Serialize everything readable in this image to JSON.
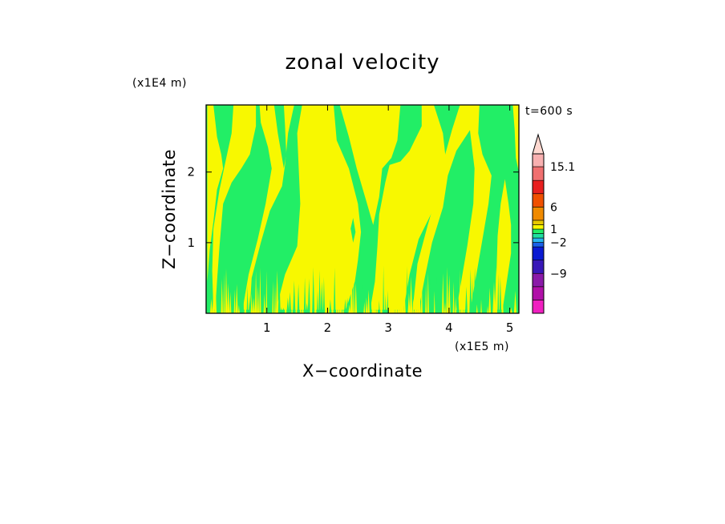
{
  "chart_data": {
    "type": "heatmap",
    "title": "zonal velocity",
    "xlabel": "X−coordinate",
    "ylabel": "Z−coordinate",
    "x_scale_label": "(x1E5 m)",
    "y_scale_label": "(x1E4 m)",
    "time_label": "t=600 s",
    "xlim": [
      0,
      5.15
    ],
    "ylim": [
      0,
      2.95
    ],
    "x_ticks": [
      1,
      2,
      3,
      4,
      5
    ],
    "y_ticks": [
      1,
      2
    ],
    "x_tick_labels": [
      "1",
      "2",
      "3",
      "4",
      "5"
    ],
    "y_tick_labels": [
      "1",
      "2"
    ],
    "colorbar": {
      "levels": [
        {
          "from": -18,
          "to": -15,
          "color": "#f020c0"
        },
        {
          "from": -15,
          "to": -12,
          "color": "#b010a8"
        },
        {
          "from": -12,
          "to": -9,
          "color": "#8a1aa8"
        },
        {
          "from": -9,
          "to": -6,
          "color": "#3818b8"
        },
        {
          "from": -6,
          "to": -3,
          "color": "#0a1ad2"
        },
        {
          "from": -3,
          "to": -2,
          "color": "#1a60e8"
        },
        {
          "from": -2,
          "to": -1,
          "color": "#27b4f0"
        },
        {
          "from": -1,
          "to": 0,
          "color": "#1fe0a0"
        },
        {
          "from": 0,
          "to": 1,
          "color": "#22ee66"
        },
        {
          "from": 1,
          "to": 2,
          "color": "#f8f800"
        },
        {
          "from": 2,
          "to": 3,
          "color": "#e8c800"
        },
        {
          "from": 3,
          "to": 6,
          "color": "#f08a00"
        },
        {
          "from": 6,
          "to": 9,
          "color": "#f05000"
        },
        {
          "from": 9,
          "to": 12,
          "color": "#e82020"
        },
        {
          "from": 12,
          "to": 15.1,
          "color": "#f07070"
        },
        {
          "from": 15.1,
          "to": 18,
          "color": "#f8b0b0"
        }
      ],
      "labels": [
        "15.1",
        "6",
        "1",
        "−2",
        "−9"
      ],
      "label_values": [
        15.1,
        6,
        1,
        -2,
        -9
      ],
      "overflow_color": "#ffd8d0"
    },
    "field_colors": {
      "background": "#22ee66",
      "positive": "#f8f800"
    },
    "positive_regions": [
      [
        [
          0.15,
          0.05
        ],
        [
          0.18,
          0.45
        ],
        [
          0.22,
          0.95
        ],
        [
          0.28,
          1.55
        ],
        [
          0.42,
          1.85
        ],
        [
          0.58,
          2.05
        ],
        [
          0.72,
          2.25
        ],
        [
          0.82,
          2.65
        ],
        [
          0.82,
          2.95
        ],
        [
          0.45,
          2.95
        ],
        [
          0.42,
          2.55
        ],
        [
          0.32,
          2.15
        ],
        [
          0.22,
          1.75
        ],
        [
          0.12,
          1.2
        ],
        [
          0.1,
          0.6
        ],
        [
          0.12,
          0.05
        ]
      ],
      [
        [
          0.02,
          0.45
        ],
        [
          0.06,
          0.9
        ],
        [
          0.12,
          1.3
        ],
        [
          0.18,
          1.75
        ],
        [
          0.28,
          2.05
        ],
        [
          0.25,
          2.25
        ],
        [
          0.18,
          2.5
        ],
        [
          0.12,
          2.95
        ],
        [
          0.02,
          2.95
        ]
      ],
      [
        [
          0.72,
          0.05
        ],
        [
          0.75,
          0.5
        ],
        [
          0.9,
          1.0
        ],
        [
          1.05,
          1.45
        ],
        [
          1.25,
          1.8
        ],
        [
          1.3,
          2.1
        ],
        [
          1.35,
          2.55
        ],
        [
          1.45,
          2.95
        ],
        [
          0.88,
          2.95
        ],
        [
          0.9,
          2.7
        ],
        [
          1.02,
          2.35
        ],
        [
          1.08,
          2.05
        ],
        [
          0.98,
          1.55
        ],
        [
          0.85,
          1.05
        ],
        [
          0.7,
          0.55
        ],
        [
          0.6,
          0.05
        ]
      ],
      [
        [
          1.15,
          0.05
        ],
        [
          1.3,
          0.55
        ],
        [
          1.5,
          0.95
        ],
        [
          1.55,
          1.55
        ],
        [
          1.52,
          2.15
        ],
        [
          1.5,
          2.55
        ],
        [
          1.58,
          2.95
        ],
        [
          2.1,
          2.95
        ],
        [
          2.15,
          2.45
        ],
        [
          2.35,
          2.05
        ],
        [
          2.5,
          1.55
        ],
        [
          2.55,
          1.15
        ],
        [
          2.5,
          0.75
        ],
        [
          2.45,
          0.45
        ],
        [
          2.3,
          0.05
        ]
      ],
      [
        [
          1.42,
          0.05
        ],
        [
          1.55,
          0.5
        ],
        [
          1.58,
          1.0
        ],
        [
          1.6,
          1.45
        ],
        [
          1.68,
          1.4
        ],
        [
          1.7,
          0.9
        ],
        [
          1.72,
          0.4
        ],
        [
          1.75,
          0.05
        ]
      ],
      [
        [
          2.2,
          2.95
        ],
        [
          2.35,
          2.5
        ],
        [
          2.48,
          2.05
        ],
        [
          2.65,
          1.55
        ],
        [
          2.75,
          1.25
        ],
        [
          2.85,
          1.65
        ],
        [
          2.9,
          2.05
        ],
        [
          3.05,
          2.2
        ],
        [
          3.15,
          2.45
        ],
        [
          3.2,
          2.95
        ]
      ],
      [
        [
          2.7,
          0.05
        ],
        [
          2.78,
          0.45
        ],
        [
          2.82,
          0.95
        ],
        [
          2.85,
          1.4
        ],
        [
          2.95,
          1.85
        ],
        [
          3.02,
          2.1
        ],
        [
          3.2,
          2.15
        ],
        [
          3.35,
          2.3
        ],
        [
          3.55,
          2.65
        ],
        [
          3.55,
          2.95
        ],
        [
          3.75,
          2.95
        ],
        [
          3.9,
          2.55
        ],
        [
          3.95,
          2.15
        ],
        [
          3.88,
          1.75
        ],
        [
          3.7,
          1.4
        ],
        [
          3.5,
          1.05
        ],
        [
          3.35,
          0.55
        ],
        [
          3.25,
          0.05
        ]
      ],
      [
        [
          3.5,
          0.05
        ],
        [
          3.6,
          0.5
        ],
        [
          3.72,
          1.0
        ],
        [
          3.9,
          1.5
        ],
        [
          3.98,
          1.95
        ],
        [
          4.12,
          2.3
        ],
        [
          4.35,
          2.6
        ],
        [
          4.45,
          2.95
        ],
        [
          4.18,
          2.95
        ],
        [
          4.05,
          2.6
        ],
        [
          3.92,
          2.2
        ],
        [
          3.82,
          1.75
        ],
        [
          3.65,
          1.25
        ],
        [
          3.48,
          0.7
        ],
        [
          3.4,
          0.05
        ]
      ],
      [
        [
          4.35,
          0.05
        ],
        [
          4.45,
          0.55
        ],
        [
          4.55,
          1.05
        ],
        [
          4.65,
          1.55
        ],
        [
          4.7,
          1.95
        ],
        [
          4.55,
          2.25
        ],
        [
          4.48,
          2.55
        ],
        [
          4.5,
          2.95
        ],
        [
          4.3,
          2.95
        ],
        [
          4.35,
          2.55
        ],
        [
          4.42,
          2.05
        ],
        [
          4.4,
          1.55
        ],
        [
          4.3,
          0.95
        ],
        [
          4.2,
          0.45
        ],
        [
          4.12,
          0.05
        ]
      ],
      [
        [
          4.88,
          0.05
        ],
        [
          4.95,
          0.45
        ],
        [
          5.02,
          0.85
        ],
        [
          5.02,
          1.25
        ],
        [
          4.98,
          1.55
        ],
        [
          4.92,
          1.9
        ],
        [
          4.85,
          1.55
        ],
        [
          4.8,
          1.1
        ],
        [
          4.78,
          0.55
        ],
        [
          4.75,
          0.05
        ]
      ],
      [
        [
          5.05,
          2.95
        ],
        [
          5.08,
          2.6
        ],
        [
          5.1,
          2.2
        ],
        [
          5.15,
          2.0
        ],
        [
          5.15,
          2.95
        ]
      ]
    ],
    "negative_regions": [
      [
        [
          1.12,
          2.95
        ],
        [
          1.18,
          2.55
        ],
        [
          1.25,
          2.2
        ],
        [
          1.28,
          2.05
        ],
        [
          1.32,
          2.25
        ],
        [
          1.3,
          2.65
        ],
        [
          1.28,
          2.95
        ]
      ],
      [
        [
          2.38,
          1.2
        ],
        [
          2.42,
          1.35
        ],
        [
          2.46,
          1.15
        ],
        [
          2.42,
          1.0
        ]
      ]
    ],
    "noise_band": {
      "y_top": 0.6,
      "x_from": 0.05,
      "x_to": 5.1
    }
  }
}
